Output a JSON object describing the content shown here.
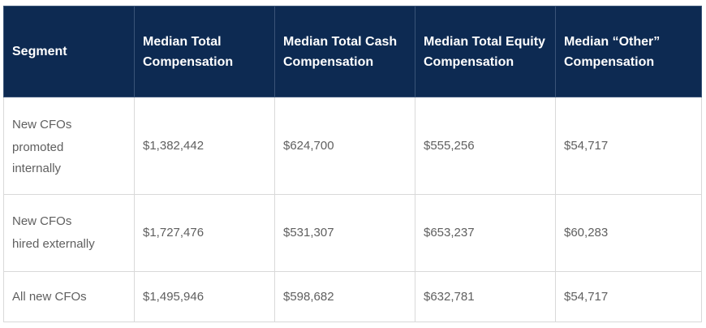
{
  "table": {
    "headers": [
      "Segment",
      "Median Total Compensation",
      "Median Total Cash Compensation",
      "Median Total Equity Compensation",
      "Median “Other” Compensation"
    ],
    "rows": [
      {
        "segment_lines": [
          "New CFOs",
          "promoted",
          "internally"
        ],
        "total": "$1,382,442",
        "cash": "$624,700",
        "equity": "$555,256",
        "other": "$54,717"
      },
      {
        "segment_lines": [
          "New CFOs",
          "hired externally"
        ],
        "total": "$1,727,476",
        "cash": "$531,307",
        "equity": "$653,237",
        "other": "$60,283"
      },
      {
        "segment_lines": [
          "All new CFOs"
        ],
        "total": "$1,495,946",
        "cash": "$598,682",
        "equity": "$632,781",
        "other": "$54,717"
      }
    ]
  },
  "colors": {
    "header_bg": "#0d2a52",
    "header_text": "#ffffff",
    "body_text": "#5f5f5f",
    "border": "#d9d9d9"
  }
}
